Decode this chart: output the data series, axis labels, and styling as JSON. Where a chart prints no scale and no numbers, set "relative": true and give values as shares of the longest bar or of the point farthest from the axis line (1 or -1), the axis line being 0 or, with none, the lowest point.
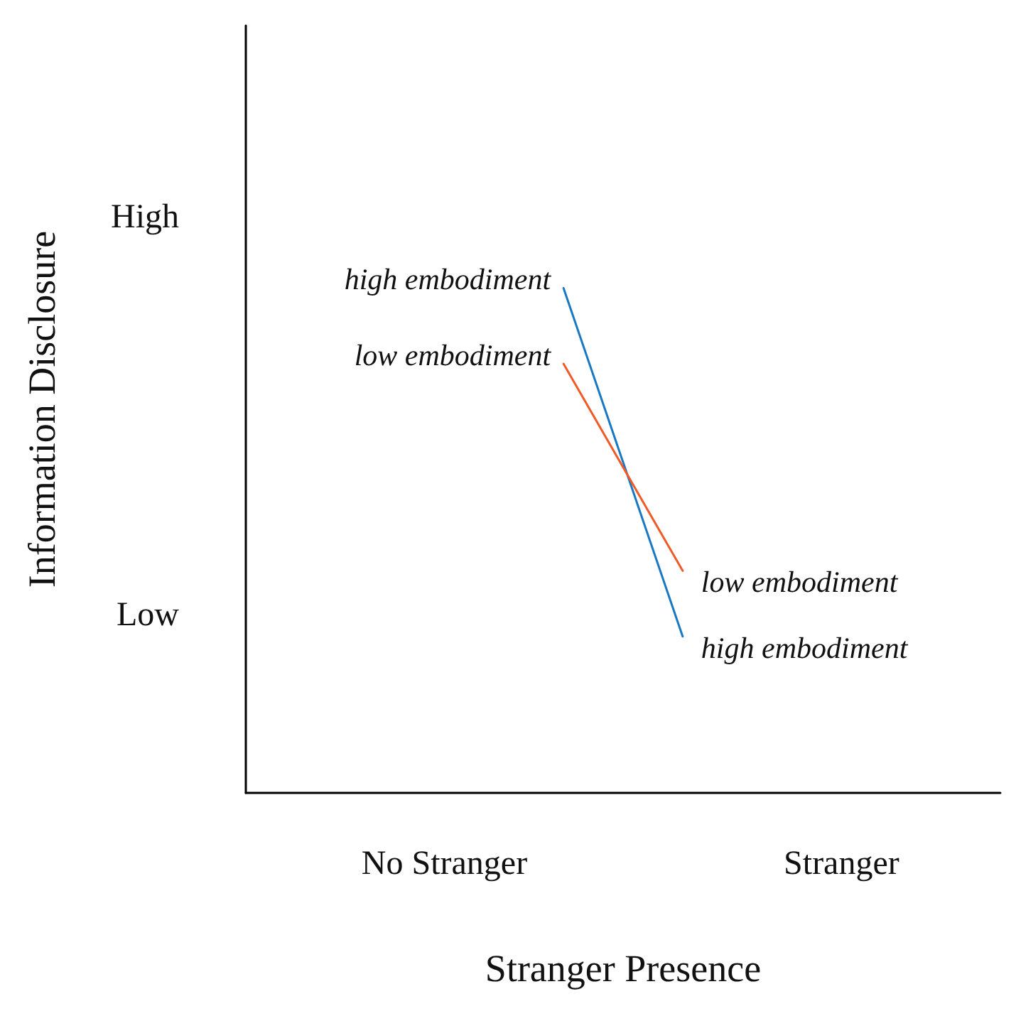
{
  "chart_data": {
    "type": "line",
    "xlabel": "Stranger Presence",
    "ylabel": "Information Disclosure",
    "relative": true,
    "categories": [
      null,
      null,
      null,
      null,
      null,
      "No Stranger",
      null,
      null,
      null,
      null,
      null,
      null,
      null,
      null,
      null,
      "Stranger",
      null,
      null,
      null,
      null
    ],
    "annotations": [
      "High",
      "Low"
    ],
    "series": [
      {
        "name": "high embodiment",
        "color": "#1a78c2",
        "values": [
          null,
          null,
          null,
          null,
          null,
          null,
          null,
          null,
          1,
          null,
          null,
          0.31,
          null,
          null,
          null,
          null,
          null,
          null,
          null,
          null
        ]
      },
      {
        "name": "low embodiment",
        "color": "#f05a28",
        "values": [
          null,
          null,
          null,
          null,
          null,
          null,
          null,
          null,
          0.85,
          null,
          null,
          0.44,
          null,
          null,
          null,
          null,
          null,
          null,
          null,
          null
        ]
      }
    ],
    "grid": false,
    "marker": "none",
    "line_style": "solid"
  }
}
